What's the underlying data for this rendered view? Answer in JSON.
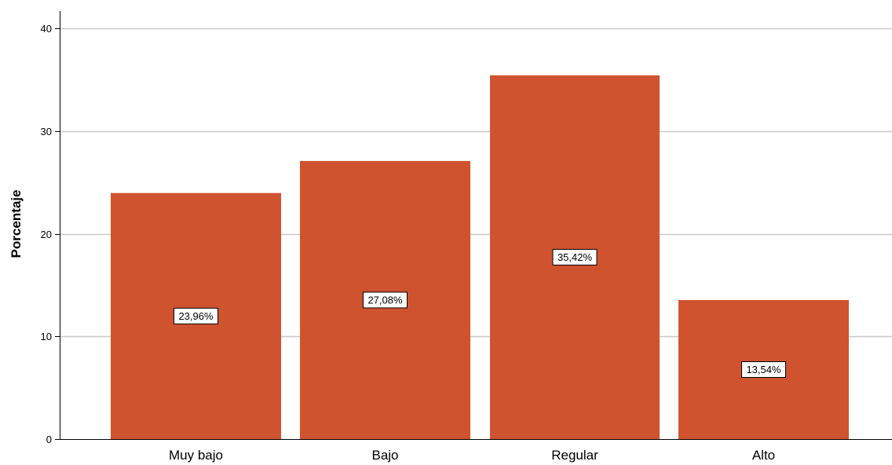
{
  "chart_data": {
    "type": "bar",
    "categories": [
      "Muy bajo",
      "Bajo",
      "Regular",
      "Alto"
    ],
    "values": [
      23.96,
      27.08,
      35.42,
      13.54
    ],
    "data_labels": [
      "23,96%",
      "27,08%",
      "35,42%",
      "13,54%"
    ],
    "title": "",
    "xlabel": "",
    "ylabel": "Porcentaje",
    "ylim": [
      0,
      40
    ],
    "yticks": [
      0,
      10,
      20,
      30,
      40
    ],
    "ytick_labels": [
      "0",
      "10",
      "20",
      "30",
      "40"
    ],
    "grid": true,
    "bar_color": "#d0532f",
    "grid_color": "#c8c8c8"
  }
}
